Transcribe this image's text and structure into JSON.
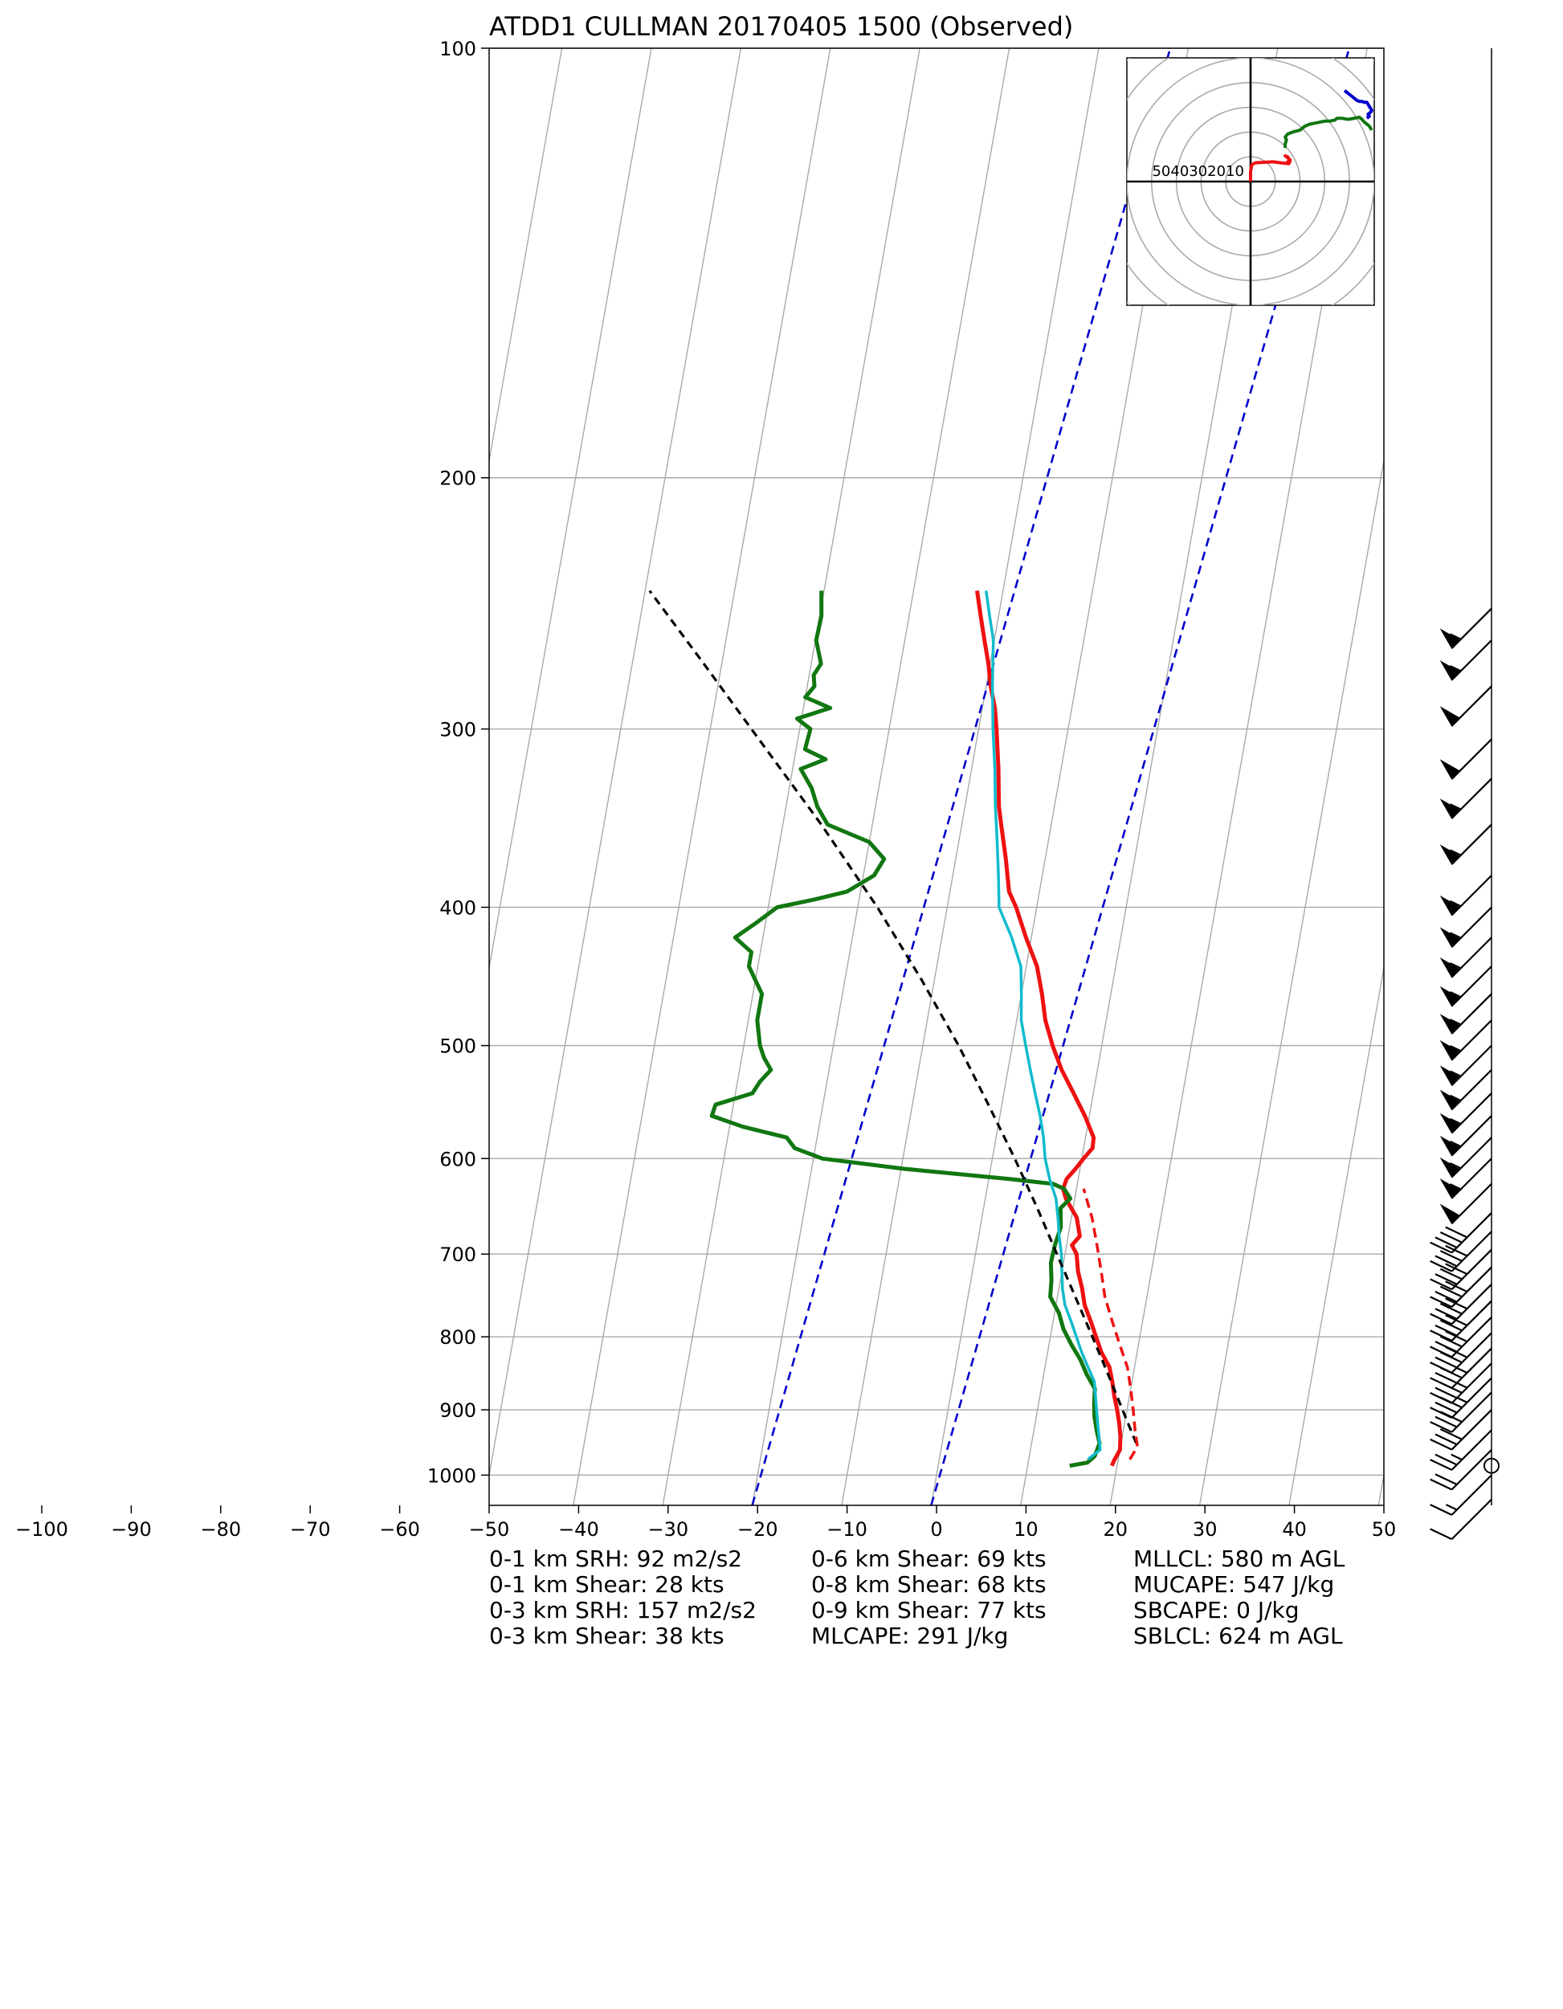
{
  "chart_data": {
    "type": "skew-t log-p",
    "title": "ATDD1 CULLMAN 20170405 1500   (Observed)",
    "x_ticks": [
      -100,
      -90,
      -80,
      -70,
      -60,
      -50,
      -40,
      -30,
      -20,
      -10,
      0,
      10,
      20,
      30,
      40,
      50
    ],
    "y_ticks": [
      100,
      200,
      300,
      400,
      500,
      600,
      700,
      800,
      900,
      1000
    ],
    "xlim": [
      -50,
      50
    ],
    "ylim": [
      1050,
      100
    ],
    "y_scale": "log",
    "grid": true,
    "colors": {
      "temperature": "#ee1111",
      "dewpoint": "#117711",
      "wetbulb": "#11bbcc",
      "parcel": "#000000",
      "virtual_temperature": "#ee1111",
      "moist_adiabat_guides": "#0000cc",
      "isotherms": "#aaaaaa",
      "isobars": "#aaaaaa",
      "hodograph_low": "#ee1111",
      "hodograph_mid": "#117711",
      "hodograph_high": "#0000cc"
    },
    "series": [
      {
        "name": "temperature",
        "pressure": [
          985,
          975,
          960,
          940,
          920,
          900,
          880,
          860,
          840,
          820,
          800,
          780,
          760,
          740,
          720,
          700,
          690,
          680,
          660,
          650,
          640,
          630,
          620,
          610,
          600,
          590,
          580,
          560,
          540,
          520,
          500,
          480,
          460,
          440,
          420,
          400,
          390,
          370,
          350,
          340,
          320,
          300,
          290,
          280,
          270,
          260,
          250,
          240
        ],
        "temperature": [
          19.4,
          19.6,
          20.0,
          19.8,
          19.4,
          18.9,
          18.3,
          17.8,
          17.2,
          16.0,
          15.1,
          14.2,
          13.2,
          12.6,
          11.8,
          11.3,
          10.6,
          11.3,
          10.6,
          9.8,
          9.0,
          8.5,
          8.7,
          9.5,
          10.2,
          11.0,
          10.9,
          9.5,
          7.8,
          6.0,
          4.5,
          3.2,
          2.3,
          1.2,
          -0.6,
          -2.3,
          -3.4,
          -4.4,
          -5.6,
          -6.2,
          -7.0,
          -8.0,
          -8.6,
          -9.5,
          -10.2,
          -11.1,
          -12.0,
          -12.9
        ]
      },
      {
        "name": "dewpoint",
        "pressure": [
          985,
          980,
          970,
          950,
          930,
          910,
          890,
          870,
          850,
          830,
          810,
          790,
          770,
          750,
          730,
          710,
          690,
          670,
          650,
          640,
          630,
          625,
          620,
          610,
          600,
          590,
          580,
          570,
          560,
          550,
          540,
          530,
          520,
          510,
          500,
          480,
          460,
          440,
          430,
          420,
          410,
          400,
          395,
          390,
          380,
          370,
          360,
          350,
          340,
          330,
          320,
          315,
          310,
          300,
          295,
          290,
          285,
          280,
          275,
          270,
          260,
          250,
          240
        ],
        "dewpoint": [
          14.7,
          16.6,
          17.3,
          17.6,
          17.0,
          16.5,
          16.2,
          16.0,
          14.8,
          13.8,
          12.5,
          11.3,
          10.5,
          9.2,
          9.0,
          8.6,
          8.7,
          9.0,
          8.6,
          9.5,
          8.6,
          7.3,
          2.2,
          -9.7,
          -19.0,
          -22.3,
          -23.4,
          -28.5,
          -32.2,
          -32.0,
          -28.1,
          -27.5,
          -26.5,
          -27.5,
          -28.2,
          -29.0,
          -29.0,
          -31.0,
          -31.0,
          -33.1,
          -31.0,
          -29.0,
          -25.0,
          -21.5,
          -18.8,
          -18.0,
          -20.0,
          -25.0,
          -26.5,
          -27.5,
          -29.1,
          -26.5,
          -29.0,
          -28.8,
          -30.5,
          -27.0,
          -30.0,
          -29.2,
          -29.5,
          -28.9,
          -29.9,
          -29.8,
          -30.3
        ]
      },
      {
        "name": "wetbulb",
        "pressure": [
          975,
          960,
          940,
          920,
          900,
          880,
          860,
          840,
          820,
          800,
          780,
          760,
          740,
          720,
          700,
          680,
          660,
          640,
          620,
          600,
          580,
          560,
          540,
          520,
          500,
          480,
          460,
          440,
          420,
          400,
          380,
          360,
          340,
          320,
          300,
          280,
          260,
          250,
          240
        ],
        "wetbulb": [
          16.6,
          17.8,
          17.4,
          17.0,
          16.6,
          16.2,
          15.8,
          14.8,
          13.8,
          12.9,
          12.0,
          11.0,
          10.4,
          10.0,
          9.6,
          9.0,
          8.5,
          7.9,
          6.8,
          5.9,
          5.3,
          4.5,
          3.5,
          2.5,
          1.5,
          0.5,
          0.0,
          -0.6,
          -2.2,
          -4.2,
          -4.9,
          -5.7,
          -6.6,
          -7.4,
          -8.4,
          -9.3,
          -10.1,
          -11.0,
          -11.9
        ]
      },
      {
        "name": "parcel",
        "pressure": [
          950,
          900,
          850,
          800,
          750,
          700,
          650,
          600,
          550,
          500,
          450,
          400,
          350,
          300,
          270,
          240
        ],
        "parcel": [
          21.7,
          19.5,
          17.2,
          14.7,
          12.0,
          9.1,
          6.0,
          2.5,
          -1.5,
          -6.0,
          -11.4,
          -17.8,
          -25.7,
          -35.4,
          -42.0,
          -49.5
        ]
      },
      {
        "name": "virtual_temperature",
        "pressure": [
          975,
          955,
          930,
          900,
          870,
          840,
          810,
          780,
          750,
          720,
          690,
          660,
          630
        ],
        "temperature": [
          21.3,
          21.9,
          21.3,
          20.7,
          20.0,
          19.2,
          17.9,
          16.6,
          15.3,
          14.4,
          13.4,
          12.3,
          10.8
        ]
      }
    ],
    "moist_guides": [
      {
        "t_surface": -20
      },
      {
        "t_surface": 0
      }
    ],
    "isotherm_range": [
      -150,
      50
    ],
    "isotherm_step": 10,
    "wind_barbs": [
      {
        "p": 247,
        "speed": 55,
        "dir": 225
      },
      {
        "p": 260,
        "speed": 55,
        "dir": 225
      },
      {
        "p": 280,
        "speed": 50,
        "dir": 225
      },
      {
        "p": 305,
        "speed": 50,
        "dir": 225
      },
      {
        "p": 325,
        "speed": 55,
        "dir": 225
      },
      {
        "p": 350,
        "speed": 55,
        "dir": 225
      },
      {
        "p": 380,
        "speed": 55,
        "dir": 225
      },
      {
        "p": 400,
        "speed": 55,
        "dir": 225
      },
      {
        "p": 420,
        "speed": 55,
        "dir": 225
      },
      {
        "p": 440,
        "speed": 55,
        "dir": 225
      },
      {
        "p": 460,
        "speed": 55,
        "dir": 225
      },
      {
        "p": 480,
        "speed": 55,
        "dir": 225
      },
      {
        "p": 500,
        "speed": 55,
        "dir": 225
      },
      {
        "p": 520,
        "speed": 55,
        "dir": 225
      },
      {
        "p": 540,
        "speed": 55,
        "dir": 225
      },
      {
        "p": 560,
        "speed": 55,
        "dir": 225
      },
      {
        "p": 580,
        "speed": 55,
        "dir": 225
      },
      {
        "p": 600,
        "speed": 55,
        "dir": 225
      },
      {
        "p": 625,
        "speed": 50,
        "dir": 225
      },
      {
        "p": 655,
        "speed": 40,
        "dir": 225
      },
      {
        "p": 675,
        "speed": 40,
        "dir": 225
      },
      {
        "p": 695,
        "speed": 40,
        "dir": 225
      },
      {
        "p": 715,
        "speed": 40,
        "dir": 225
      },
      {
        "p": 735,
        "speed": 40,
        "dir": 225
      },
      {
        "p": 755,
        "speed": 40,
        "dir": 225
      },
      {
        "p": 775,
        "speed": 40,
        "dir": 225
      },
      {
        "p": 795,
        "speed": 40,
        "dir": 225
      },
      {
        "p": 815,
        "speed": 35,
        "dir": 225
      },
      {
        "p": 835,
        "speed": 35,
        "dir": 225
      },
      {
        "p": 855,
        "speed": 35,
        "dir": 225
      },
      {
        "p": 875,
        "speed": 30,
        "dir": 225
      },
      {
        "p": 900,
        "speed": 30,
        "dir": 225
      },
      {
        "p": 930,
        "speed": 25,
        "dir": 225
      },
      {
        "p": 960,
        "speed": 20,
        "dir": 225
      },
      {
        "p": 1000,
        "speed": 15,
        "dir": 225
      },
      {
        "p": 1040,
        "speed": 10,
        "dir": 200
      },
      {
        "p": 985,
        "speed": 0,
        "dir": 0
      }
    ],
    "hodograph": {
      "ring_labels": [
        "50",
        "40",
        "30",
        "20",
        "10"
      ],
      "max_speed": 50,
      "ring_step": 10,
      "segments": [
        {
          "name": "low",
          "u": [
            0,
            0,
            0.5,
            2,
            5,
            9,
            12,
            14,
            15.5,
            16,
            15.5,
            15,
            14,
            15,
            16,
            15,
            14.5
          ],
          "v": [
            0,
            5,
            8.5,
            9.5,
            9.7,
            10,
            9.5,
            9.2,
            9,
            10.5,
            11.5,
            12.5,
            13,
            12,
            11,
            10,
            9
          ]
        },
        {
          "name": "mid",
          "u": [
            14,
            14,
            14.5,
            14,
            15,
            17,
            20,
            22,
            24,
            26,
            28,
            30,
            32,
            34,
            35,
            37,
            39,
            40,
            42,
            44,
            45,
            46,
            47,
            48,
            49
          ],
          "v": [
            17,
            19,
            21,
            22.5,
            24,
            25,
            26,
            28,
            29,
            29.5,
            30,
            30.5,
            30.5,
            31,
            32,
            32,
            31.5,
            31.5,
            32,
            32.5,
            31.5,
            30,
            29,
            28,
            26
          ]
        },
        {
          "name": "high",
          "u": [
            47,
            48,
            47.5,
            48.5,
            49,
            48.5,
            48,
            47.5,
            47,
            46,
            45,
            44,
            43,
            42,
            41,
            40,
            39,
            38
          ],
          "v": [
            32,
            33,
            34,
            35,
            36,
            37,
            38,
            39,
            40,
            40,
            40.5,
            40.5,
            41,
            42,
            43,
            44,
            45,
            46
          ]
        }
      ]
    },
    "stats": {
      "col1": [
        "0-1 km SRH: 92 m2/s2",
        "0-1 km Shear: 28 kts",
        "0-3 km SRH: 157 m2/s2",
        "0-3 km Shear: 38 kts"
      ],
      "col2": [
        "0-6 km Shear: 69 kts",
        "0-8 km Shear: 68 kts",
        "0-9 km Shear: 77 kts",
        "MLCAPE: 291 J/kg"
      ],
      "col3": [
        "MLLCL: 580 m AGL",
        "MUCAPE: 547 J/kg",
        "SBCAPE: 0 J/kg",
        "SBLCL: 624 m AGL"
      ]
    }
  }
}
